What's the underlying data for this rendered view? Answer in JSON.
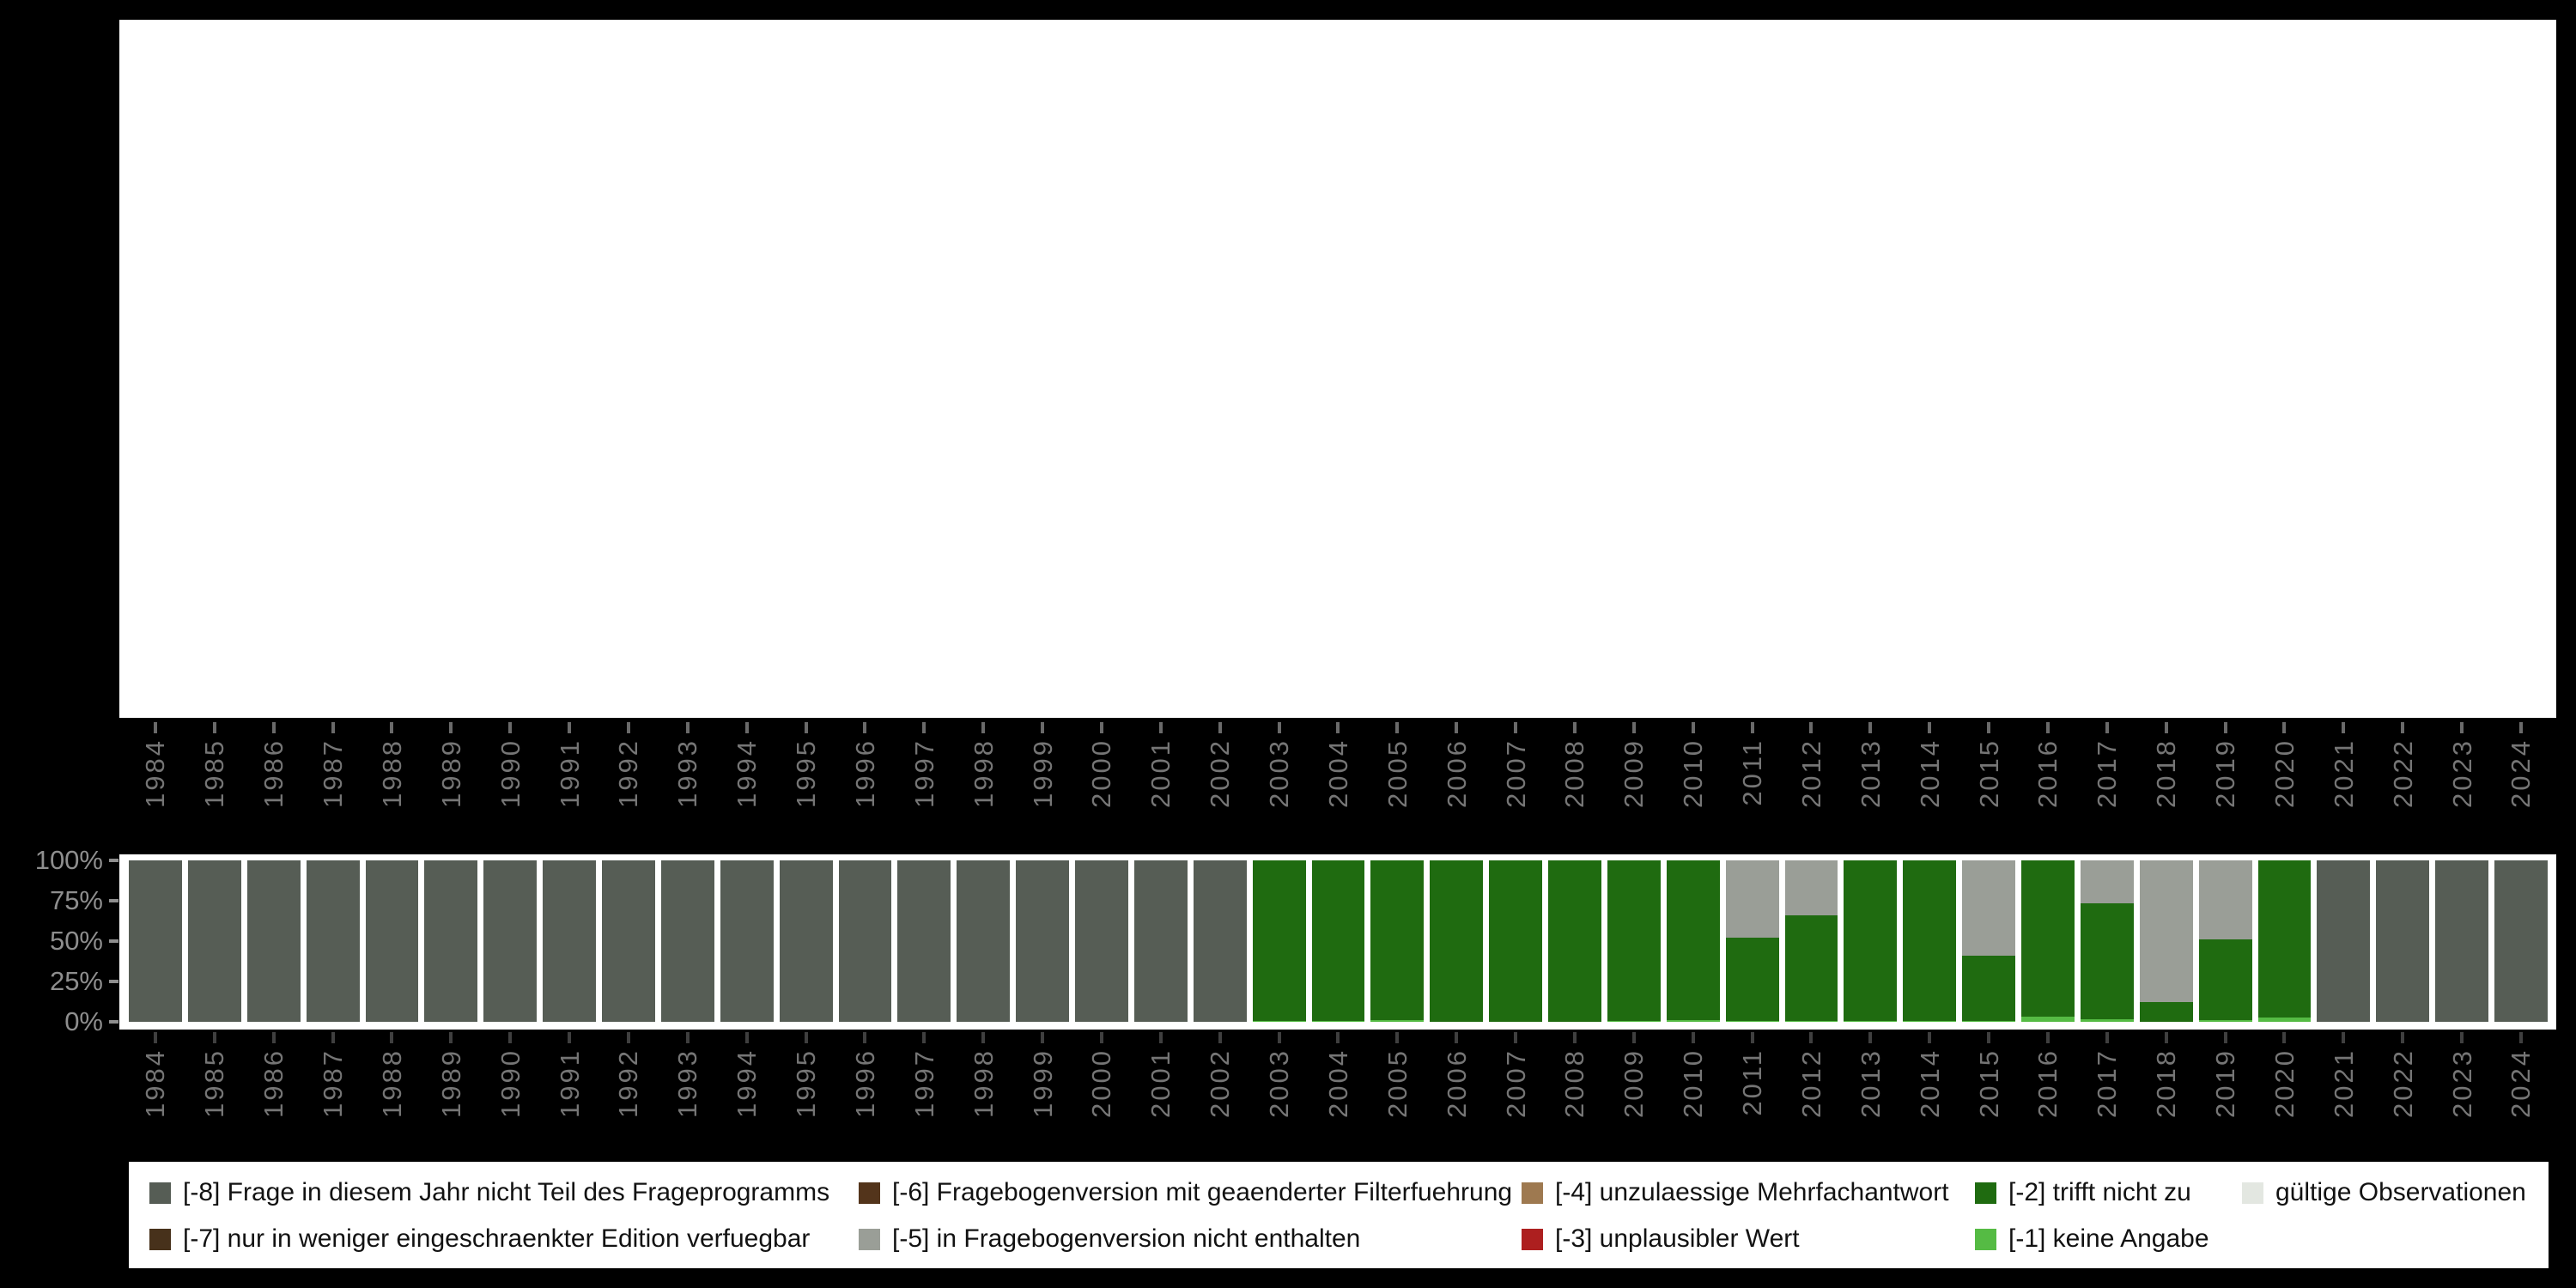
{
  "page": {
    "background": "#000000"
  },
  "y_axis": {
    "tick_labels": [
      "100%",
      "75%",
      "50%",
      "25%",
      "0%"
    ]
  },
  "legend": {
    "items": [
      {
        "id": "neg8",
        "label": "[-8] Frage in diesem Jahr nicht Teil des Frageprogramms",
        "color": "#565D55",
        "col": 0,
        "row": 0
      },
      {
        "id": "neg7",
        "label": "[-7] nur in weniger eingeschraenkter Edition verfuegbar",
        "color": "#47311B",
        "col": 0,
        "row": 1
      },
      {
        "id": "neg6",
        "label": "[-6] Fragebogenversion mit geaenderter Filterfuehrung",
        "color": "#53341B",
        "col": 1,
        "row": 0
      },
      {
        "id": "neg5",
        "label": "[-5] in Fragebogenversion nicht enthalten",
        "color": "#9A9E97",
        "col": 1,
        "row": 1
      },
      {
        "id": "neg4",
        "label": "[-4] unzulaessige Mehrfachantwort",
        "color": "#9E7950",
        "col": 2,
        "row": 0
      },
      {
        "id": "neg3",
        "label": "[-3] unplausibler Wert",
        "color": "#AD1F1F",
        "col": 2,
        "row": 1
      },
      {
        "id": "neg2",
        "label": "[-2] trifft nicht zu",
        "color": "#1F6B10",
        "col": 3,
        "row": 0
      },
      {
        "id": "neg1",
        "label": "[-1] keine Angabe",
        "color": "#55BB44",
        "col": 3,
        "row": 1
      },
      {
        "id": "valid",
        "label": "gültige Observationen",
        "color": "#E3E7E1",
        "col": 4,
        "row": 0
      }
    ]
  },
  "chart_data": {
    "type": "bar",
    "stacked": true,
    "title": "",
    "xlabel": "",
    "ylabel": "",
    "ylim": [
      0,
      100
    ],
    "yticks": [
      "0%",
      "25%",
      "50%",
      "75%",
      "100%"
    ],
    "legend_position": "bottom",
    "x_axis_shown_twice": true,
    "categories": [
      1984,
      1985,
      1986,
      1987,
      1988,
      1989,
      1990,
      1991,
      1992,
      1993,
      1994,
      1995,
      1996,
      1997,
      1998,
      1999,
      2000,
      2001,
      2002,
      2003,
      2004,
      2005,
      2006,
      2007,
      2008,
      2009,
      2010,
      2011,
      2012,
      2013,
      2014,
      2015,
      2016,
      2017,
      2018,
      2019,
      2020,
      2021,
      2022,
      2023,
      2024
    ],
    "series": [
      {
        "name": "[-1] keine Angabe",
        "color": "#55BB44",
        "values": [
          0,
          0,
          0,
          0,
          0,
          0,
          0,
          0,
          0,
          0,
          0,
          0,
          0,
          0,
          0,
          0,
          0,
          0,
          0,
          0.5,
          0.5,
          1,
          0,
          0,
          0,
          0.5,
          1,
          0.5,
          0.5,
          0.5,
          0.5,
          0.5,
          3,
          1.5,
          0,
          1,
          2.5,
          0,
          0,
          0,
          0
        ]
      },
      {
        "name": "[-2] trifft nicht zu",
        "color": "#1F6B10",
        "values": [
          0,
          0,
          0,
          0,
          0,
          0,
          0,
          0,
          0,
          0,
          0,
          0,
          0,
          0,
          0,
          0,
          0,
          0,
          0,
          99.5,
          99.5,
          99,
          100,
          100,
          100,
          99.5,
          99,
          51.5,
          65.5,
          99.5,
          99.5,
          40.5,
          97,
          72,
          12,
          50,
          97.5,
          0,
          0,
          0,
          0
        ]
      },
      {
        "name": "[-5] in Fragebogenversion nicht enthalten",
        "color": "#9A9E97",
        "values": [
          0,
          0,
          0,
          0,
          0,
          0,
          0,
          0,
          0,
          0,
          0,
          0,
          0,
          0,
          0,
          0,
          0,
          0,
          0,
          0,
          0,
          0,
          0,
          0,
          0,
          0,
          0,
          48,
          34,
          0,
          0,
          59,
          0,
          26.5,
          88,
          49,
          0,
          0,
          0,
          0,
          0
        ]
      },
      {
        "name": "[-8] Frage in diesem Jahr nicht Teil des Frageprogramms",
        "color": "#565D55",
        "values": [
          100,
          100,
          100,
          100,
          100,
          100,
          100,
          100,
          100,
          100,
          100,
          100,
          100,
          100,
          100,
          100,
          100,
          100,
          100,
          0,
          0,
          0,
          0,
          0,
          0,
          0,
          0,
          0,
          0,
          0,
          0,
          0,
          0,
          0,
          0,
          0,
          0,
          100,
          100,
          100,
          100
        ]
      }
    ]
  }
}
